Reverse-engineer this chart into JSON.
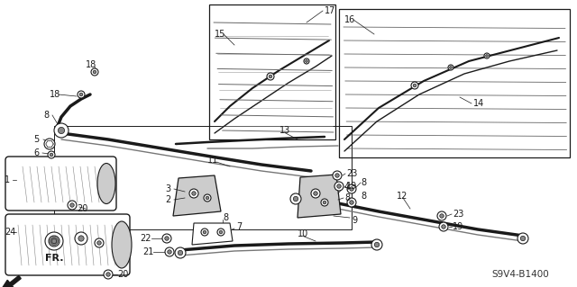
{
  "bg_color": "#ffffff",
  "part_number_text": "S9V4-B1400",
  "lc": "#1a1a1a",
  "gray": "#888888",
  "lgray": "#cccccc",
  "dgray": "#444444"
}
